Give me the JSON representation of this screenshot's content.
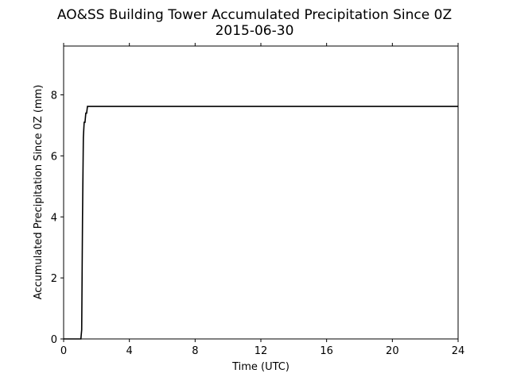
{
  "chart_data": {
    "type": "line",
    "title": "AO&SS Building Tower Accumulated Precipitation Since 0Z",
    "subtitle": "2015-06-30",
    "x_label": "Time (UTC)",
    "y_label": "Accumulated Precipitation Since 0Z (mm)",
    "x": [
      0,
      1.05,
      1.1,
      1.15,
      1.2,
      1.25,
      1.3,
      1.35,
      1.4,
      1.45,
      24
    ],
    "values": [
      0,
      0,
      0.3,
      4,
      6.6,
      7.1,
      7.1,
      7.4,
      7.4,
      7.62,
      7.62
    ],
    "color": "#000000",
    "xlim": [
      0,
      24
    ],
    "xticks": [
      0,
      4,
      8,
      12,
      16,
      20,
      24
    ],
    "ylim": [
      0,
      9.6
    ],
    "yticks": [
      0,
      2,
      4,
      6,
      8
    ]
  }
}
